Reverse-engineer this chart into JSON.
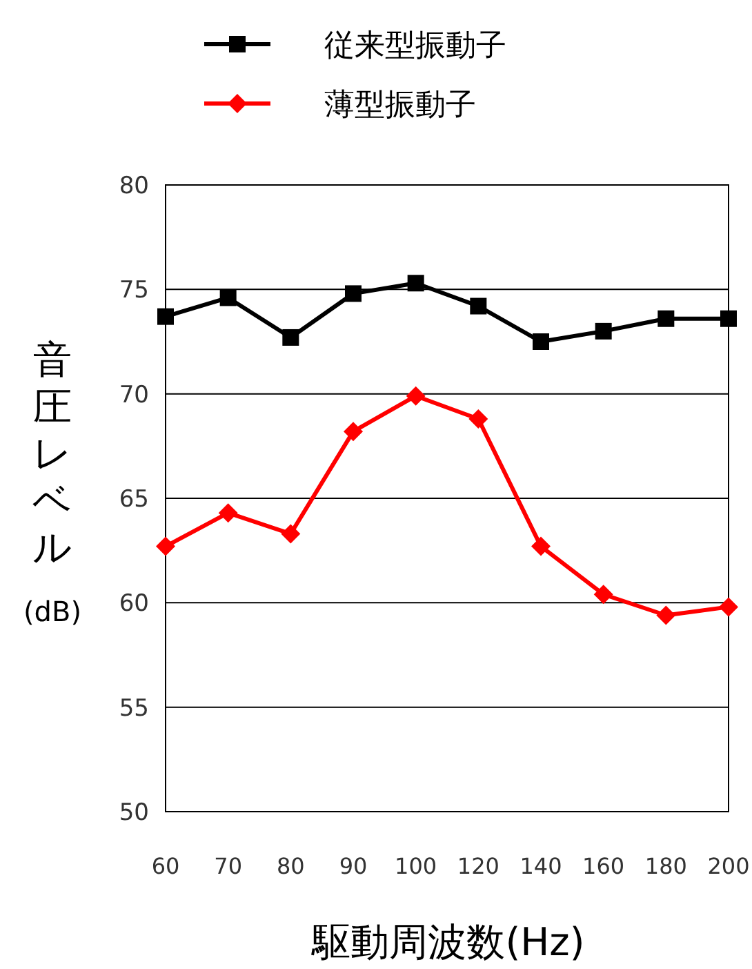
{
  "chart_data": {
    "type": "line",
    "xlabel": "駆動周波数(Hz)",
    "ylabel": "音圧レベル(dB)",
    "categories": [
      "60",
      "70",
      "80",
      "90",
      "100",
      "120",
      "140",
      "160",
      "180",
      "200"
    ],
    "series": [
      {
        "name": "従来型振動子",
        "color": "#000000",
        "marker": "square",
        "values": [
          73.7,
          74.6,
          72.7,
          74.8,
          75.3,
          74.2,
          72.5,
          73.0,
          73.6,
          73.6
        ]
      },
      {
        "name": "薄型振動子",
        "color": "#ff0000",
        "marker": "diamond",
        "values": [
          62.7,
          64.3,
          63.3,
          68.2,
          69.9,
          68.8,
          62.7,
          60.4,
          59.4,
          59.8
        ]
      }
    ],
    "ylim": [
      50,
      80
    ],
    "yticks": [
      50,
      55,
      60,
      65,
      70,
      75,
      80
    ],
    "grid": "y",
    "legend": "top"
  }
}
